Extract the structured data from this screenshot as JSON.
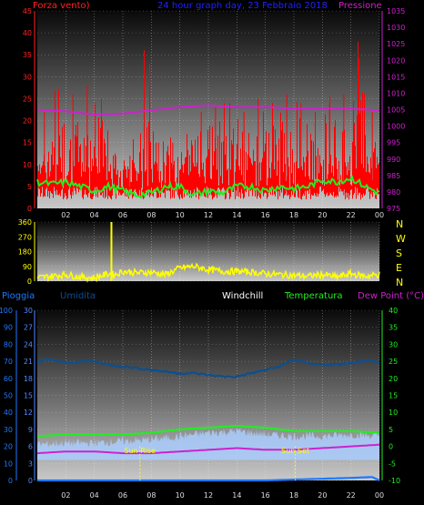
{
  "colors": {
    "wind": "#ff0000",
    "gust": "#ff0000",
    "avg_wind": "#22ee22",
    "pressure": "#cc22cc",
    "title": "#2222ff",
    "direction": "#ffff00",
    "rain": "#1e78ff",
    "humidity": "#0d4f8f",
    "windchill": "#aaccff",
    "temperature": "#22ee22",
    "dewpoint": "#cc22cc",
    "sun_marker": "#ffff00",
    "axis_left": "#ff2222",
    "axis_right": "#cc22cc"
  },
  "header": {
    "wind_label": "Forza vento)",
    "title": "24 hour graph day, 23 Febbraio 2018",
    "pressure_label": "Pressione"
  },
  "lower_header": {
    "rain_label": "Pioggia",
    "humidity_label": "Umidita",
    "windchill_label": "Windchill",
    "temperature_label": "Temperatura",
    "dewpoint_label": "Dew Point (°C)"
  },
  "compass": [
    "N",
    "W",
    "S",
    "E",
    "N"
  ],
  "sun": {
    "rise_label": "Sun Rise",
    "rise_time": 7.2,
    "set_label": "Sun Set",
    "set_time": 18.1
  },
  "chart_data": [
    {
      "type": "line",
      "title": "24 hour graph day, 23 Febbraio 2018",
      "x_ticks": [
        "02",
        "04",
        "06",
        "08",
        "10",
        "12",
        "14",
        "16",
        "18",
        "20",
        "22",
        "00"
      ],
      "xlim": [
        0,
        24
      ],
      "ylim_left": [
        0,
        45
      ],
      "ylim_right": [
        975,
        1035
      ],
      "y_ticks_left": [
        0,
        5,
        10,
        15,
        20,
        25,
        30,
        35,
        40,
        45
      ],
      "y_ticks_right": [
        975,
        980,
        985,
        990,
        995,
        1000,
        1005,
        1010,
        1015,
        1020,
        1025,
        1030,
        1035
      ],
      "series": [
        {
          "name": "Forza vento",
          "axis": "left",
          "kind": "bars",
          "peaks": [
            [
              0.5,
              22
            ],
            [
              1.5,
              27
            ],
            [
              2.5,
              26
            ],
            [
              3.5,
              28
            ],
            [
              4.5,
              25
            ],
            [
              5.5,
              12
            ],
            [
              6.5,
              12
            ],
            [
              7.5,
              36
            ],
            [
              8.5,
              15
            ],
            [
              9.5,
              15
            ],
            [
              10.5,
              17
            ],
            [
              11.5,
              22
            ],
            [
              12.5,
              23
            ],
            [
              13.5,
              24
            ],
            [
              14.5,
              22
            ],
            [
              15.5,
              25
            ],
            [
              16.5,
              24
            ],
            [
              17.5,
              26
            ],
            [
              18.5,
              24
            ],
            [
              19.5,
              22
            ],
            [
              20.5,
              24
            ],
            [
              21.5,
              26
            ],
            [
              22.5,
              38
            ],
            [
              23.5,
              22
            ]
          ],
          "baseline": 4
        },
        {
          "name": "Avg wind",
          "axis": "left",
          "x": [
            0,
            1,
            2,
            3,
            4,
            5,
            6,
            7,
            8,
            9,
            10,
            11,
            12,
            13,
            14,
            15,
            16,
            17,
            18,
            19,
            20,
            21,
            22,
            23,
            24
          ],
          "y": [
            6,
            5.5,
            6,
            5,
            4,
            5,
            4,
            3,
            3.5,
            5,
            5,
            3,
            4,
            3.5,
            5,
            5,
            4,
            5,
            4.5,
            5,
            6.5,
            6,
            7,
            5,
            3.5
          ]
        },
        {
          "name": "Pressione",
          "axis": "right",
          "x": [
            0,
            2,
            4,
            6,
            8,
            10,
            12,
            14,
            16,
            18,
            20,
            22,
            24
          ],
          "y": [
            1005,
            1004.5,
            1003.5,
            1003.8,
            1004.8,
            1005.8,
            1006.3,
            1005.8,
            1005.8,
            1005.3,
            1005.3,
            1005.3,
            1004.8
          ]
        }
      ]
    },
    {
      "type": "scatter",
      "xlim": [
        0,
        24
      ],
      "ylim": [
        0,
        360
      ],
      "y_ticks": [
        0,
        90,
        180,
        270,
        360
      ],
      "series": [
        {
          "name": "Wind direction",
          "x": [
            0,
            1,
            2,
            3,
            4,
            5,
            5.5,
            6,
            7,
            8,
            9,
            10,
            11,
            12,
            13,
            14,
            15,
            16,
            17,
            18,
            19,
            20,
            21,
            22,
            23,
            24
          ],
          "y": [
            20,
            30,
            40,
            25,
            20,
            45,
            40,
            60,
            50,
            55,
            40,
            80,
            90,
            70,
            60,
            60,
            55,
            45,
            40,
            35,
            30,
            40,
            25,
            45,
            30,
            40
          ]
        },
        {
          "name": "Gust spike",
          "x": [
            5.2,
            5.2
          ],
          "y": [
            0,
            360
          ]
        }
      ]
    },
    {
      "type": "line",
      "xlim": [
        0,
        24
      ],
      "ylim_left": [
        0,
        100
      ],
      "ylim_left2": [
        0,
        30
      ],
      "ylim_right": [
        -10,
        40
      ],
      "y_ticks_left": [
        0,
        10,
        20,
        30,
        40,
        50,
        60,
        70,
        80,
        90,
        100
      ],
      "y_ticks_left2": [
        0,
        3,
        6,
        9,
        12,
        15,
        18,
        21,
        24,
        27,
        30
      ],
      "y_ticks_right": [
        -10,
        -5,
        0,
        5,
        10,
        15,
        20,
        25,
        30,
        35,
        40
      ],
      "series": [
        {
          "name": "Pioggia",
          "axis": "left",
          "x": [
            0,
            2,
            4,
            6,
            8,
            10,
            12,
            14,
            16,
            18,
            20,
            22,
            23.5,
            24
          ],
          "y": [
            0,
            0,
            0,
            0,
            0,
            0,
            0,
            0,
            0,
            0.5,
            1,
            1.5,
            2,
            0
          ]
        },
        {
          "name": "Umidita",
          "axis": "left",
          "x": [
            0,
            1,
            2,
            3,
            4,
            5,
            6,
            7,
            8,
            9,
            10,
            11,
            12,
            13,
            14,
            15,
            16,
            17,
            18,
            19,
            20,
            21,
            22,
            23,
            24
          ],
          "y": [
            70,
            71,
            69,
            70,
            70,
            68,
            67,
            66,
            65,
            64,
            63,
            63,
            62,
            61,
            61,
            63,
            65,
            67,
            71,
            69,
            68,
            68,
            69,
            70,
            70
          ]
        },
        {
          "name": "Windchill",
          "axis": "right",
          "x": [
            0,
            2,
            4,
            6,
            8,
            10,
            12,
            14,
            16,
            18,
            20,
            22,
            24
          ],
          "y": [
            0.5,
            1,
            1,
            1.5,
            2,
            3,
            4,
            4.5,
            3.5,
            3,
            3,
            3.5,
            3
          ]
        },
        {
          "name": "Temperatura",
          "axis": "right",
          "x": [
            0,
            2,
            4,
            6,
            8,
            10,
            12,
            14,
            16,
            18,
            20,
            22,
            24
          ],
          "y": [
            3,
            3.5,
            3.5,
            3.5,
            4,
            5,
            5.5,
            6,
            5.5,
            4.5,
            4.5,
            4.5,
            4
          ]
        },
        {
          "name": "Dew Point",
          "axis": "right",
          "x": [
            0,
            2,
            4,
            6,
            8,
            10,
            12,
            14,
            16,
            18,
            20,
            22,
            24
          ],
          "y": [
            -2,
            -1.5,
            -1.5,
            -2,
            -2,
            -1.5,
            -1,
            -0.5,
            -1,
            -1,
            -0.5,
            0,
            0.5
          ]
        }
      ]
    }
  ]
}
